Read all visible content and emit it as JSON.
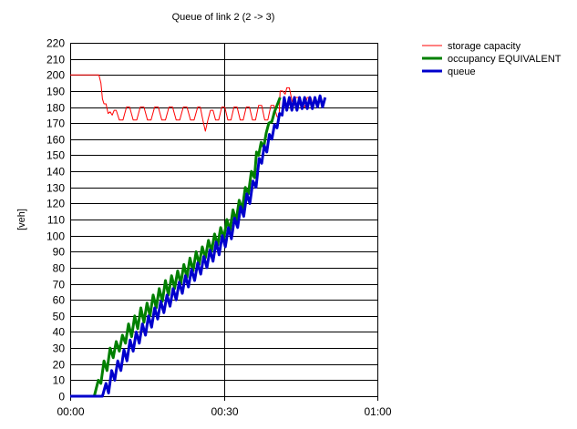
{
  "chart_data": {
    "type": "line",
    "title": "Queue of link 2 (2 -> 3)",
    "ylabel": "[veh]",
    "xlabel": "",
    "x_unit": "minutes",
    "xlim": [
      0,
      60
    ],
    "ylim": [
      0,
      220
    ],
    "y_ticks": [
      0,
      10,
      20,
      30,
      40,
      50,
      60,
      70,
      80,
      90,
      100,
      110,
      120,
      130,
      140,
      150,
      160,
      170,
      180,
      190,
      200,
      210,
      220
    ],
    "y_tick_labels": [
      "0",
      "10",
      "20",
      "30",
      "40",
      "50",
      "60",
      "70",
      "80",
      "90",
      "100",
      "110",
      "120",
      "130",
      "140",
      "150",
      "160",
      "170",
      "180",
      "190",
      "200",
      "210",
      "220"
    ],
    "x_ticks": [
      0,
      30,
      60
    ],
    "x_tick_labels": [
      "00:00",
      "00:30",
      "01:00"
    ],
    "grid": true,
    "legend_position": "top-right-outside",
    "series": [
      {
        "name": "storage capacity",
        "color": "#ff0000",
        "width": 1,
        "points": [
          [
            0,
            200
          ],
          [
            5.6,
            200
          ],
          [
            6,
            195
          ],
          [
            6.3,
            185
          ],
          [
            6.6,
            182
          ],
          [
            7,
            182
          ],
          [
            7.4,
            176
          ],
          [
            7.8,
            177
          ],
          [
            8.2,
            175
          ],
          [
            8.6,
            178
          ],
          [
            9,
            178
          ],
          [
            9.6,
            172
          ],
          [
            10.3,
            172
          ],
          [
            11,
            180
          ],
          [
            11.6,
            180
          ],
          [
            12.3,
            172
          ],
          [
            13,
            172
          ],
          [
            13.7,
            180
          ],
          [
            14.4,
            180
          ],
          [
            15.1,
            172
          ],
          [
            15.8,
            172
          ],
          [
            16.5,
            180
          ],
          [
            17.2,
            180
          ],
          [
            17.9,
            172
          ],
          [
            18.6,
            172
          ],
          [
            19.3,
            180
          ],
          [
            20,
            180
          ],
          [
            20.7,
            172
          ],
          [
            21.4,
            172
          ],
          [
            22.1,
            180
          ],
          [
            22.8,
            180
          ],
          [
            23.5,
            172
          ],
          [
            24.2,
            172
          ],
          [
            24.9,
            180
          ],
          [
            25.4,
            180
          ],
          [
            25.9,
            172
          ],
          [
            26.4,
            165
          ],
          [
            26.9,
            172
          ],
          [
            27.4,
            178
          ],
          [
            27.9,
            178
          ],
          [
            28.4,
            172
          ],
          [
            29,
            172
          ],
          [
            29.6,
            180
          ],
          [
            30.2,
            180
          ],
          [
            30.8,
            172
          ],
          [
            31.4,
            172
          ],
          [
            32,
            180
          ],
          [
            32.6,
            180
          ],
          [
            33.2,
            172
          ],
          [
            33.8,
            172
          ],
          [
            34.4,
            180
          ],
          [
            35,
            180
          ],
          [
            35.6,
            172
          ],
          [
            36.2,
            172
          ],
          [
            36.8,
            181
          ],
          [
            37.4,
            181
          ],
          [
            38,
            172
          ],
          [
            38.6,
            172
          ],
          [
            39.2,
            181
          ],
          [
            39.8,
            181
          ],
          [
            40.4,
            174
          ],
          [
            40.8,
            174
          ],
          [
            41,
            190
          ],
          [
            41.5,
            190
          ],
          [
            42,
            188
          ],
          [
            42.3,
            192
          ],
          [
            42.8,
            192
          ],
          [
            43.2,
            186
          ],
          [
            43.6,
            180
          ],
          [
            44,
            186
          ],
          [
            44.6,
            186
          ],
          [
            45.2,
            180
          ],
          [
            45.8,
            180
          ],
          [
            46.3,
            186
          ],
          [
            47,
            186
          ],
          [
            47.4,
            181
          ]
        ]
      },
      {
        "name": "occupancy EQUIVALENT",
        "color": "#008000",
        "width": 3,
        "points": [
          [
            0,
            0
          ],
          [
            4.7,
            0
          ],
          [
            5.5,
            10
          ],
          [
            6,
            8
          ],
          [
            6.6,
            22
          ],
          [
            7.2,
            16
          ],
          [
            7.8,
            30
          ],
          [
            8.4,
            24
          ],
          [
            9,
            34
          ],
          [
            9.6,
            28
          ],
          [
            10.2,
            38
          ],
          [
            10.8,
            33
          ],
          [
            11.4,
            45
          ],
          [
            12,
            37
          ],
          [
            12.6,
            50
          ],
          [
            13.2,
            42
          ],
          [
            13.8,
            55
          ],
          [
            14.4,
            46
          ],
          [
            15,
            58
          ],
          [
            15.6,
            50
          ],
          [
            16.2,
            63
          ],
          [
            16.8,
            55
          ],
          [
            17.4,
            67
          ],
          [
            18,
            59
          ],
          [
            18.6,
            72
          ],
          [
            19.2,
            63
          ],
          [
            19.8,
            75
          ],
          [
            20.4,
            67
          ],
          [
            21,
            78
          ],
          [
            21.6,
            70
          ],
          [
            22.2,
            82
          ],
          [
            22.8,
            74
          ],
          [
            23.4,
            86
          ],
          [
            24,
            78
          ],
          [
            24.6,
            90
          ],
          [
            25.2,
            82
          ],
          [
            25.8,
            93
          ],
          [
            26.4,
            86
          ],
          [
            27,
            97
          ],
          [
            27.6,
            90
          ],
          [
            28.2,
            101
          ],
          [
            28.8,
            94
          ],
          [
            29.4,
            105
          ],
          [
            30,
            98
          ],
          [
            30.6,
            110
          ],
          [
            31.2,
            103
          ],
          [
            31.8,
            116
          ],
          [
            32.4,
            109
          ],
          [
            33,
            122
          ],
          [
            33.6,
            116
          ],
          [
            34.2,
            130
          ],
          [
            34.8,
            126
          ],
          [
            35.4,
            140
          ],
          [
            36,
            136
          ],
          [
            36.4,
            152
          ],
          [
            36.8,
            150
          ],
          [
            37.3,
            158
          ],
          [
            37.8,
            155
          ],
          [
            38.3,
            164
          ],
          [
            38.8,
            170
          ],
          [
            39.4,
            171
          ],
          [
            39.9,
            177
          ],
          [
            40.4,
            181
          ],
          [
            41,
            186
          ]
        ]
      },
      {
        "name": "queue",
        "color": "#0000cc",
        "width": 3,
        "points": [
          [
            0,
            0
          ],
          [
            6.3,
            0
          ],
          [
            7,
            8
          ],
          [
            7.5,
            2
          ],
          [
            8.1,
            16
          ],
          [
            8.7,
            10
          ],
          [
            9.3,
            22
          ],
          [
            9.9,
            16
          ],
          [
            10.5,
            29
          ],
          [
            11.1,
            22
          ],
          [
            11.7,
            35
          ],
          [
            12.3,
            28
          ],
          [
            12.9,
            40
          ],
          [
            13.5,
            33
          ],
          [
            14.1,
            45
          ],
          [
            14.7,
            38
          ],
          [
            15.3,
            50
          ],
          [
            15.9,
            43
          ],
          [
            16.5,
            55
          ],
          [
            17.1,
            48
          ],
          [
            17.7,
            59
          ],
          [
            18.3,
            52
          ],
          [
            18.9,
            63
          ],
          [
            19.5,
            56
          ],
          [
            20.1,
            67
          ],
          [
            20.7,
            60
          ],
          [
            21.3,
            71
          ],
          [
            21.9,
            64
          ],
          [
            22.5,
            75
          ],
          [
            23.1,
            68
          ],
          [
            23.7,
            79
          ],
          [
            24.3,
            72
          ],
          [
            24.9,
            83
          ],
          [
            25.5,
            76
          ],
          [
            26.1,
            87
          ],
          [
            26.7,
            80
          ],
          [
            27.3,
            91
          ],
          [
            27.9,
            84
          ],
          [
            28.5,
            96
          ],
          [
            29.1,
            88
          ],
          [
            29.7,
            100
          ],
          [
            30.3,
            93
          ],
          [
            30.9,
            105
          ],
          [
            31.5,
            98
          ],
          [
            32.1,
            111
          ],
          [
            32.7,
            105
          ],
          [
            33.3,
            118
          ],
          [
            33.9,
            112
          ],
          [
            34.5,
            126
          ],
          [
            35.1,
            120
          ],
          [
            35.7,
            134
          ],
          [
            36.3,
            130
          ],
          [
            36.9,
            148
          ],
          [
            37.4,
            145
          ],
          [
            37.9,
            156
          ],
          [
            38.4,
            152
          ],
          [
            38.9,
            163
          ],
          [
            39.4,
            160
          ],
          [
            39.9,
            169
          ],
          [
            40.4,
            167
          ],
          [
            40.9,
            176
          ],
          [
            41.4,
            175
          ],
          [
            41.8,
            186
          ],
          [
            42.3,
            178
          ],
          [
            42.8,
            186
          ],
          [
            43.3,
            178
          ],
          [
            43.8,
            186
          ],
          [
            44.3,
            178
          ],
          [
            44.8,
            186
          ],
          [
            45.3,
            179
          ],
          [
            45.8,
            186
          ],
          [
            46.3,
            179
          ],
          [
            46.8,
            186
          ],
          [
            47.3,
            179
          ],
          [
            47.8,
            186
          ],
          [
            48.3,
            180
          ],
          [
            48.8,
            187
          ],
          [
            49.3,
            180
          ],
          [
            49.8,
            186
          ]
        ]
      }
    ]
  }
}
